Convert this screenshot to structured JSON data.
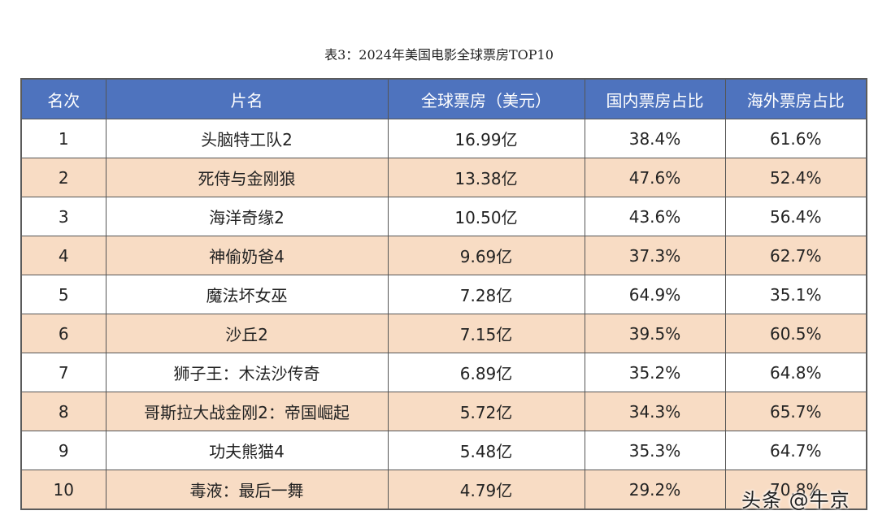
{
  "caption": "表3：2024年美国电影全球票房TOP10",
  "table": {
    "headers": [
      "名次",
      "片名",
      "全球票房（美元）",
      "国内票房占比",
      "海外票房占比"
    ],
    "rows": [
      {
        "rank": "1",
        "title": "头脑特工队2",
        "gross": "16.99亿",
        "domestic": "38.4%",
        "overseas": "61.6%"
      },
      {
        "rank": "2",
        "title": "死侍与金刚狼",
        "gross": "13.38亿",
        "domestic": "47.6%",
        "overseas": "52.4%"
      },
      {
        "rank": "3",
        "title": "海洋奇缘2",
        "gross": "10.50亿",
        "domestic": "43.6%",
        "overseas": "56.4%"
      },
      {
        "rank": "4",
        "title": "神偷奶爸4",
        "gross": "9.69亿",
        "domestic": "37.3%",
        "overseas": "62.7%"
      },
      {
        "rank": "5",
        "title": "魔法坏女巫",
        "gross": "7.28亿",
        "domestic": "64.9%",
        "overseas": "35.1%"
      },
      {
        "rank": "6",
        "title": "沙丘2",
        "gross": "7.15亿",
        "domestic": "39.5%",
        "overseas": "60.5%"
      },
      {
        "rank": "7",
        "title": "狮子王：木法沙传奇",
        "gross": "6.89亿",
        "domestic": "35.2%",
        "overseas": "64.8%"
      },
      {
        "rank": "8",
        "title": "哥斯拉大战金刚2：帝国崛起",
        "gross": "5.72亿",
        "domestic": "34.3%",
        "overseas": "65.7%"
      },
      {
        "rank": "9",
        "title": "功夫熊猫4",
        "gross": "5.48亿",
        "domestic": "35.3%",
        "overseas": "64.7%"
      },
      {
        "rank": "10",
        "title": "毒液：最后一舞",
        "gross": "4.79亿",
        "domestic": "29.2%",
        "overseas": "70.8%"
      }
    ]
  },
  "watermark": "头条 @牛京",
  "colors": {
    "header_bg": "#4e73be",
    "alt_row_bg": "#f8dcc4",
    "border": "#555555"
  }
}
